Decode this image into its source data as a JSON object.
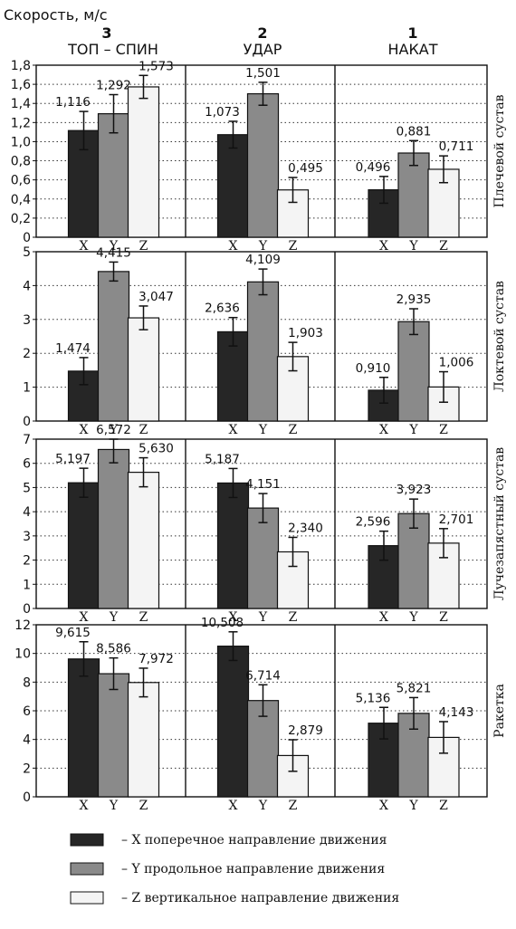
{
  "y_axis_title": "Скорость, м/с",
  "columns": [
    {
      "number": "3",
      "label": "ТОП – СПИН"
    },
    {
      "number": "2",
      "label": "УДАР"
    },
    {
      "number": "1",
      "label": "НАКАТ"
    }
  ],
  "legend": [
    {
      "series": "X",
      "text": "– X поперечное направление движения"
    },
    {
      "series": "Y",
      "text": "– Y  продольное направление движения"
    },
    {
      "series": "Z",
      "text": "– Z вертикальное направление движения"
    }
  ],
  "colors": {
    "X": "#262626",
    "Y": "#8a8a8a",
    "Z": "#f4f4f4"
  },
  "chart_data": {
    "type": "bar",
    "series_names": [
      "X",
      "Y",
      "Z"
    ],
    "grid": "dotted horizontal",
    "panels": [
      {
        "label": "Плечевой сустав",
        "ylim": [
          0,
          1.8
        ],
        "yticks": [
          "0",
          "0,2",
          "0,4",
          "0,6",
          "0,8",
          "1,0",
          "1,2",
          "1,4",
          "1,6",
          "1,8"
        ],
        "ytick_values": [
          0,
          0.2,
          0.4,
          0.6,
          0.8,
          1.0,
          1.2,
          1.4,
          1.6,
          1.8
        ],
        "groups": [
          {
            "column": "ТОП – СПИН",
            "values": [
              1.116,
              1.292,
              1.573
            ],
            "labels": [
              "1,116",
              "1,292",
              "1,573"
            ],
            "errors": [
              0.2,
              0.2,
              0.12
            ]
          },
          {
            "column": "УДАР",
            "values": [
              1.073,
              1.501,
              0.495
            ],
            "labels": [
              "1,073",
              "1,501",
              "0,495"
            ],
            "errors": [
              0.14,
              0.12,
              0.13
            ]
          },
          {
            "column": "НАКАТ",
            "values": [
              0.496,
              0.881,
              0.711
            ],
            "labels": [
              "0,496",
              "0,881",
              "0,711"
            ],
            "errors": [
              0.14,
              0.13,
              0.14
            ]
          }
        ]
      },
      {
        "label": "Локтевой сустав",
        "ylim": [
          0,
          5
        ],
        "yticks": [
          "0",
          "1",
          "2",
          "3",
          "4",
          "5"
        ],
        "ytick_values": [
          0,
          1,
          2,
          3,
          4,
          5
        ],
        "groups": [
          {
            "column": "ТОП – СПИН",
            "values": [
              1.474,
              4.415,
              3.047
            ],
            "labels": [
              "1,474",
              "4,415",
              "3,047"
            ],
            "errors": [
              0.4,
              0.28,
              0.35
            ]
          },
          {
            "column": "УДАР",
            "values": [
              2.636,
              4.109,
              1.903
            ],
            "labels": [
              "2,636",
              "4,109",
              "1,903"
            ],
            "errors": [
              0.42,
              0.38,
              0.42
            ]
          },
          {
            "column": "НАКАТ",
            "values": [
              0.91,
              2.935,
              1.006
            ],
            "labels": [
              "0,910",
              "2,935",
              "1,006"
            ],
            "errors": [
              0.38,
              0.38,
              0.45
            ]
          }
        ]
      },
      {
        "label": "Лучезапястный сустав",
        "ylim": [
          0,
          7
        ],
        "yticks": [
          "0",
          "1",
          "2",
          "3",
          "4",
          "5",
          "6",
          "7"
        ],
        "ytick_values": [
          0,
          1,
          2,
          3,
          4,
          5,
          6,
          7
        ],
        "groups": [
          {
            "column": "ТОП – СПИН",
            "values": [
              5.197,
              6.572,
              5.63
            ],
            "labels": [
              "5,197",
              "6,572",
              "5,630"
            ],
            "errors": [
              0.6,
              0.55,
              0.6
            ]
          },
          {
            "column": "УДАР",
            "values": [
              5.187,
              4.151,
              2.34
            ],
            "labels": [
              "5,187",
              "4,151",
              "2,340"
            ],
            "errors": [
              0.6,
              0.6,
              0.6
            ]
          },
          {
            "column": "НАКАТ",
            "values": [
              2.596,
              3.923,
              2.701
            ],
            "labels": [
              "2,596",
              "3,923",
              "2,701"
            ],
            "errors": [
              0.6,
              0.6,
              0.6
            ]
          }
        ]
      },
      {
        "label": "Ракетка",
        "ylim": [
          0,
          12
        ],
        "yticks": [
          "0",
          "2",
          "4",
          "6",
          "8",
          "10",
          "12"
        ],
        "ytick_values": [
          0,
          2,
          4,
          6,
          8,
          10,
          12
        ],
        "groups": [
          {
            "column": "ТОП – СПИН",
            "values": [
              9.615,
              8.586,
              7.972
            ],
            "labels": [
              "9,615",
              "8,586",
              "7,972"
            ],
            "errors": [
              1.2,
              1.1,
              1.0
            ]
          },
          {
            "column": "УДАР",
            "values": [
              10.508,
              6.714,
              2.879
            ],
            "labels": [
              "10,508",
              "6,714",
              "2,879"
            ],
            "errors": [
              1.0,
              1.1,
              1.1
            ]
          },
          {
            "column": "НАКАТ",
            "values": [
              5.136,
              5.821,
              4.143
            ],
            "labels": [
              "5,136",
              "5,821",
              "4,143"
            ],
            "errors": [
              1.1,
              1.1,
              1.1
            ]
          }
        ]
      }
    ]
  }
}
